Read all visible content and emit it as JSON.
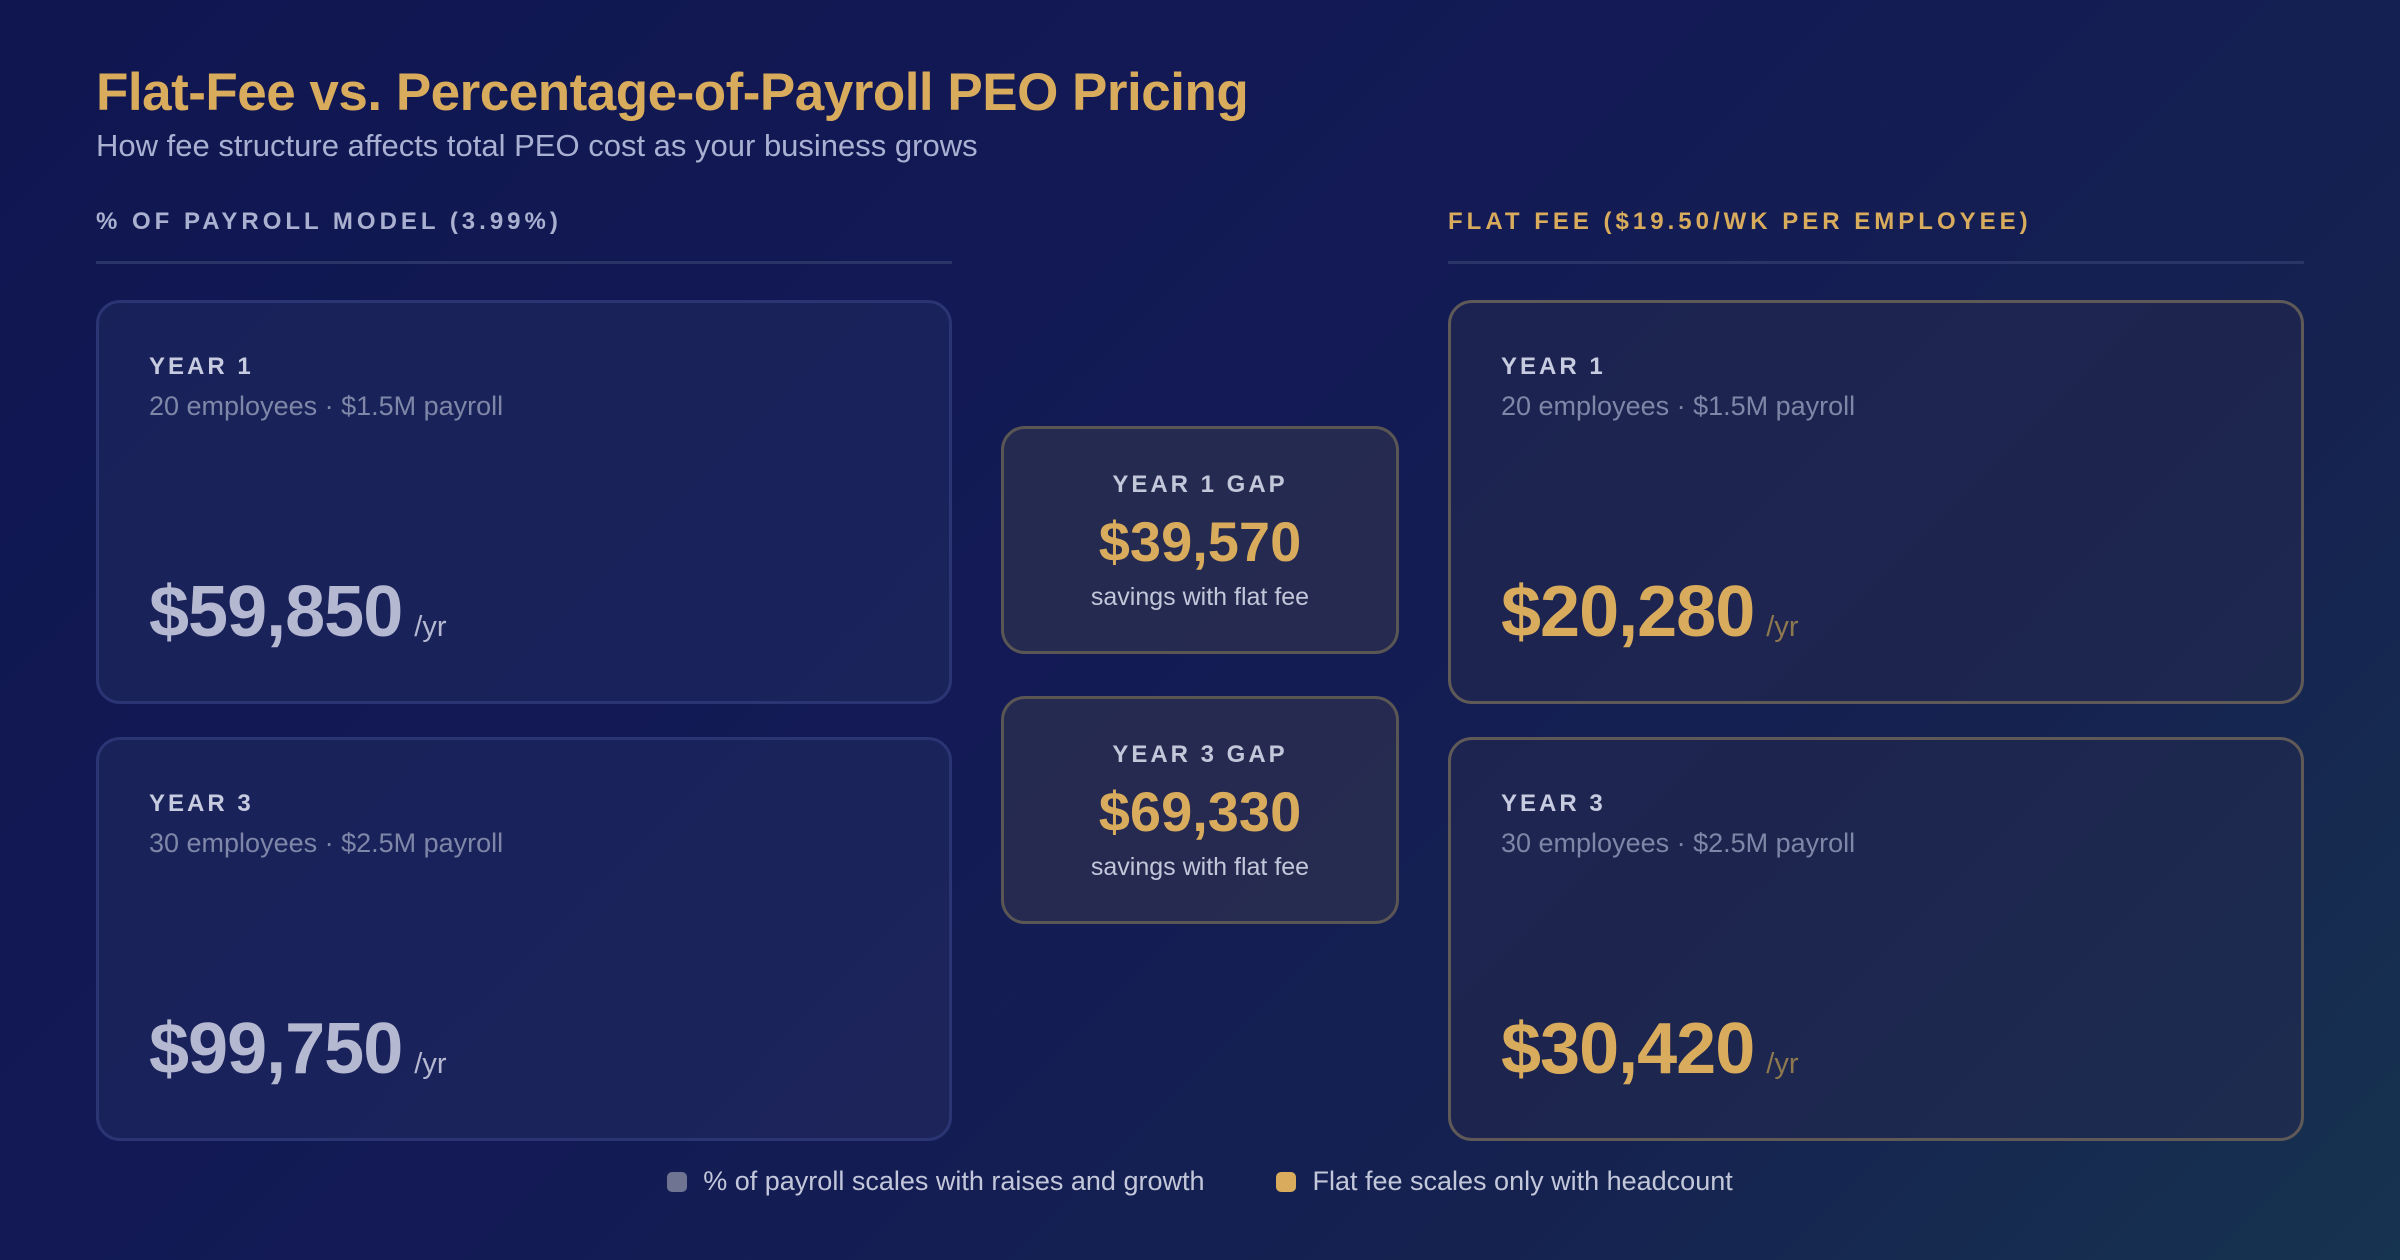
{
  "header": {
    "title": "Flat-Fee vs. Percentage-of-Payroll PEO Pricing",
    "subtitle": "How fee structure affects total PEO cost as your business grows"
  },
  "columns": {
    "percent": {
      "heading": "% OF PAYROLL MODEL (3.99%)",
      "cards": [
        {
          "year": "YEAR 1",
          "meta": "20 employees · $1.5M payroll",
          "amount": "$59,850",
          "unit": "/yr"
        },
        {
          "year": "YEAR 3",
          "meta": "30 employees · $2.5M payroll",
          "amount": "$99,750",
          "unit": "/yr"
        }
      ]
    },
    "flat": {
      "heading": "FLAT FEE ($19.50/WK PER EMPLOYEE)",
      "cards": [
        {
          "year": "YEAR 1",
          "meta": "20 employees · $1.5M payroll",
          "amount": "$20,280",
          "unit": "/yr"
        },
        {
          "year": "YEAR 3",
          "meta": "30 employees · $2.5M payroll",
          "amount": "$30,420",
          "unit": "/yr"
        }
      ]
    }
  },
  "gaps": [
    {
      "label": "YEAR 1 GAP",
      "amount": "$39,570",
      "sub": "savings with flat fee"
    },
    {
      "label": "YEAR 3 GAP",
      "amount": "$69,330",
      "sub": "savings with flat fee"
    }
  ],
  "legend": [
    {
      "label": "% of payroll scales with raises and growth",
      "color": "#6e7491"
    },
    {
      "label": "Flat fee scales only with headcount",
      "color": "#d8ac5c"
    }
  ],
  "colors": {
    "accent": "#d8ac5c",
    "muted": "#b5b8d1"
  }
}
